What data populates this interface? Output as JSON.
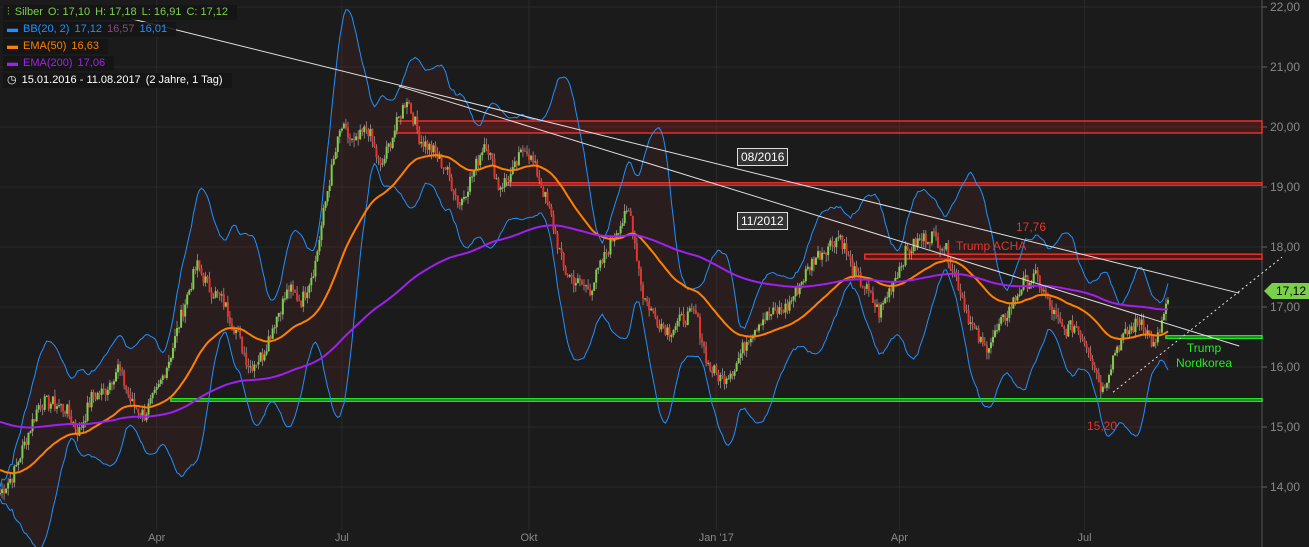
{
  "legend": {
    "symbol": "Silber",
    "open": "O: 17,10",
    "high": "H: 17,18",
    "low": "L: 16,91",
    "close": "C: 17,12",
    "bb_label": "BB(20, 2)",
    "bb_upper": "17,12",
    "bb_mid": "16,57",
    "bb_lower": "16,01",
    "ema50_label": "EMA(50)",
    "ema50_value": "16,63",
    "ema200_label": "EMA(200)",
    "ema200_value": "17,06",
    "period": "15.01.2016 - 11.08.2017",
    "duration": "(2 Jahre, 1 Tag)"
  },
  "colors": {
    "up": "#7bd04a",
    "down": "#e8312a",
    "bb": "#1e90ff",
    "ema50": "#ff8000",
    "ema200": "#a020f0",
    "support": "#22ee22",
    "resistance": "#e8312a",
    "trend": "#e0e0e0"
  },
  "annotations": {
    "box1": "08/2016",
    "box2": "11/2012",
    "high_value": "17,76",
    "event1": "Trump  ACHA",
    "low_value": "15,20",
    "event2_line1": "Trump",
    "event2_line2": "Nordkorea"
  },
  "price_tag": "17,12",
  "chart_data": {
    "type": "candlestick",
    "x_range": [
      "2016-01-15",
      "2017-08-11"
    ],
    "ylim": [
      13.1,
      22.1
    ],
    "y_ticks": [
      "22,00",
      "21,00",
      "20,00",
      "19,00",
      "18,00",
      "17,00",
      "16,00",
      "15,00",
      "14,00"
    ],
    "y_tick_values": [
      22,
      21,
      20,
      19,
      18,
      17,
      16,
      15,
      14
    ],
    "x_ticks": [
      {
        "label": "Apr",
        "date": "2016-04-01"
      },
      {
        "label": "Jul",
        "date": "2016-07-01"
      },
      {
        "label": "Okt",
        "date": "2016-10-01"
      },
      {
        "label": "Jan '17",
        "date": "2017-01-01"
      },
      {
        "label": "Apr",
        "date": "2017-04-01"
      },
      {
        "label": "Jul",
        "date": "2017-07-01"
      }
    ],
    "closes": [
      13.9,
      14.2,
      14.8,
      15.4,
      15.4,
      15.3,
      14.9,
      15.5,
      15.6,
      16.0,
      15.4,
      15.2,
      15.6,
      16.2,
      17.0,
      17.7,
      17.3,
      17.1,
      16.6,
      16.0,
      16.2,
      16.8,
      17.3,
      17.1,
      17.7,
      19.0,
      20.0,
      19.7,
      20.0,
      19.3,
      19.9,
      20.5,
      19.8,
      19.6,
      19.3,
      18.7,
      19.2,
      19.8,
      19.0,
      19.2,
      19.7,
      19.2,
      18.5,
      17.6,
      17.4,
      17.3,
      17.8,
      18.3,
      18.6,
      17.2,
      16.8,
      16.6,
      16.8,
      16.9,
      16.0,
      15.8,
      16.0,
      16.5,
      16.8,
      16.9,
      17.0,
      17.4,
      17.8,
      18.0,
      18.2,
      17.6,
      17.3,
      16.9,
      17.4,
      17.9,
      18.1,
      18.2,
      18.0,
      17.4,
      16.7,
      16.3,
      16.6,
      17.0,
      17.4,
      17.5,
      17.0,
      16.6,
      16.7,
      16.3,
      15.6,
      16.3,
      16.6,
      16.8,
      16.3,
      17.12
    ],
    "zones": [
      {
        "kind": "resistance",
        "from": 19.9,
        "to": 20.1,
        "start": "2016-07-28"
      },
      {
        "kind": "resistance",
        "from": 19.03,
        "to": 19.07,
        "start": "2016-09-20"
      },
      {
        "kind": "resistance",
        "from": 17.8,
        "to": 17.88,
        "start": "2017-03-15"
      },
      {
        "kind": "support",
        "from": 15.43,
        "to": 15.47,
        "start": "2016-04-08"
      },
      {
        "kind": "support",
        "from": 16.48,
        "to": 16.52,
        "start": "2017-08-10"
      }
    ],
    "trendlines": [
      {
        "from": [
          "2016-03-20",
          21.8
        ],
        "to": [
          "2017-09-15",
          17.23
        ]
      },
      {
        "from": [
          "2016-07-29",
          20.68
        ],
        "to": [
          "2017-09-15",
          16.35
        ]
      },
      {
        "from": [
          "2017-07-15",
          15.58
        ],
        "to": [
          "2017-10-06",
          17.83
        ],
        "dotted": true
      }
    ]
  }
}
